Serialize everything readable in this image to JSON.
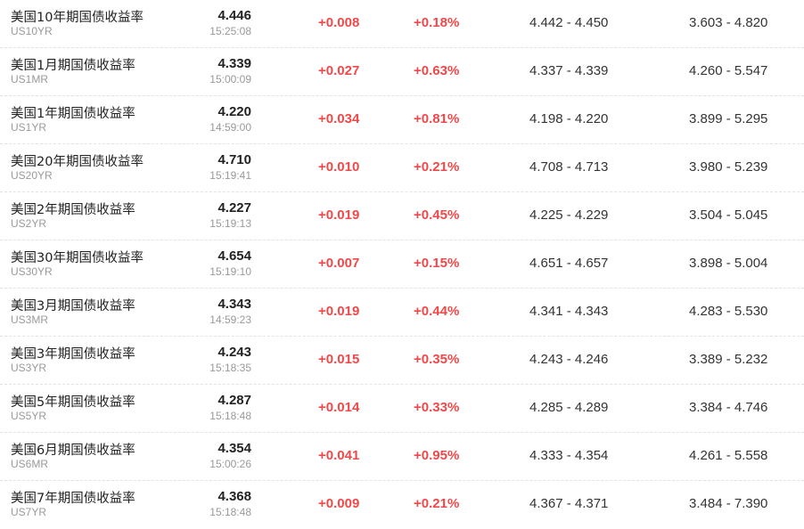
{
  "colors": {
    "up": "#f04848",
    "name": "#222222",
    "sub": "#999999",
    "divider": "#e3e3e3"
  },
  "rows": [
    {
      "name": "美国10年期国债收益率",
      "code": "US10YR",
      "price": "4.446",
      "time": "15:25:08",
      "change": "+0.008",
      "pct": "+0.18%",
      "day_range": "4.442 - 4.450",
      "year_range": "3.603 - 4.820"
    },
    {
      "name": "美国1月期国债收益率",
      "code": "US1MR",
      "price": "4.339",
      "time": "15:00:09",
      "change": "+0.027",
      "pct": "+0.63%",
      "day_range": "4.337 - 4.339",
      "year_range": "4.260 - 5.547"
    },
    {
      "name": "美国1年期国债收益率",
      "code": "US1YR",
      "price": "4.220",
      "time": "14:59:00",
      "change": "+0.034",
      "pct": "+0.81%",
      "day_range": "4.198 - 4.220",
      "year_range": "3.899 - 5.295"
    },
    {
      "name": "美国20年期国债收益率",
      "code": "US20YR",
      "price": "4.710",
      "time": "15:19:41",
      "change": "+0.010",
      "pct": "+0.21%",
      "day_range": "4.708 - 4.713",
      "year_range": "3.980 - 5.239"
    },
    {
      "name": "美国2年期国债收益率",
      "code": "US2YR",
      "price": "4.227",
      "time": "15:19:13",
      "change": "+0.019",
      "pct": "+0.45%",
      "day_range": "4.225 - 4.229",
      "year_range": "3.504 - 5.045"
    },
    {
      "name": "美国30年期国债收益率",
      "code": "US30YR",
      "price": "4.654",
      "time": "15:19:10",
      "change": "+0.007",
      "pct": "+0.15%",
      "day_range": "4.651 - 4.657",
      "year_range": "3.898 - 5.004"
    },
    {
      "name": "美国3月期国债收益率",
      "code": "US3MR",
      "price": "4.343",
      "time": "14:59:23",
      "change": "+0.019",
      "pct": "+0.44%",
      "day_range": "4.341 - 4.343",
      "year_range": "4.283 - 5.530"
    },
    {
      "name": "美国3年期国债收益率",
      "code": "US3YR",
      "price": "4.243",
      "time": "15:18:35",
      "change": "+0.015",
      "pct": "+0.35%",
      "day_range": "4.243 - 4.246",
      "year_range": "3.389 - 5.232"
    },
    {
      "name": "美国5年期国债收益率",
      "code": "US5YR",
      "price": "4.287",
      "time": "15:18:48",
      "change": "+0.014",
      "pct": "+0.33%",
      "day_range": "4.285 - 4.289",
      "year_range": "3.384 - 4.746"
    },
    {
      "name": "美国6月期国债收益率",
      "code": "US6MR",
      "price": "4.354",
      "time": "15:00:26",
      "change": "+0.041",
      "pct": "+0.95%",
      "day_range": "4.333 - 4.354",
      "year_range": "4.261 - 5.558"
    },
    {
      "name": "美国7年期国债收益率",
      "code": "US7YR",
      "price": "4.368",
      "time": "15:18:48",
      "change": "+0.009",
      "pct": "+0.21%",
      "day_range": "4.367 - 4.371",
      "year_range": "3.484 - 7.390"
    }
  ]
}
